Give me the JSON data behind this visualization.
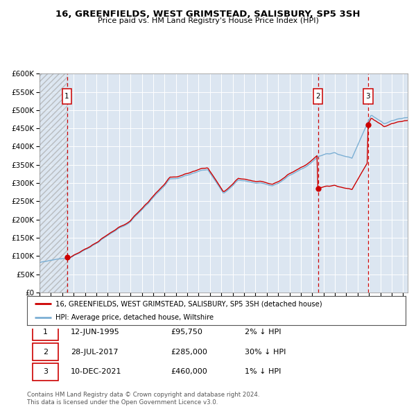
{
  "title1": "16, GREENFIELDS, WEST GRIMSTEAD, SALISBURY, SP5 3SH",
  "title2": "Price paid vs. HM Land Registry's House Price Index (HPI)",
  "legend_line1": "16, GREENFIELDS, WEST GRIMSTEAD, SALISBURY, SP5 3SH (detached house)",
  "legend_line2": "HPI: Average price, detached house, Wiltshire",
  "transactions": [
    {
      "num": 1,
      "date": "12-JUN-1995",
      "price": 95750,
      "hpi_rel": "2% ↓ HPI"
    },
    {
      "num": 2,
      "date": "28-JUL-2017",
      "price": 285000,
      "hpi_rel": "30% ↓ HPI"
    },
    {
      "num": 3,
      "date": "10-DEC-2021",
      "price": 460000,
      "hpi_rel": "1% ↓ HPI"
    }
  ],
  "footer": "Contains HM Land Registry data © Crown copyright and database right 2024.\nThis data is licensed under the Open Government Licence v3.0.",
  "hpi_color": "#7bafd4",
  "property_color": "#cc0000",
  "dashed_color": "#cc0000",
  "background_color": "#dce6f1",
  "grid_color": "#ffffff",
  "ylim": [
    0,
    600000
  ],
  "xlim_start": 1993.0,
  "xlim_end": 2025.4,
  "price1": 95750,
  "price2": 285000,
  "price3": 460000,
  "t1_year": 1995,
  "t1_month": 6,
  "t2_year": 2017,
  "t2_month": 7,
  "t3_year": 2021,
  "t3_month": 12
}
